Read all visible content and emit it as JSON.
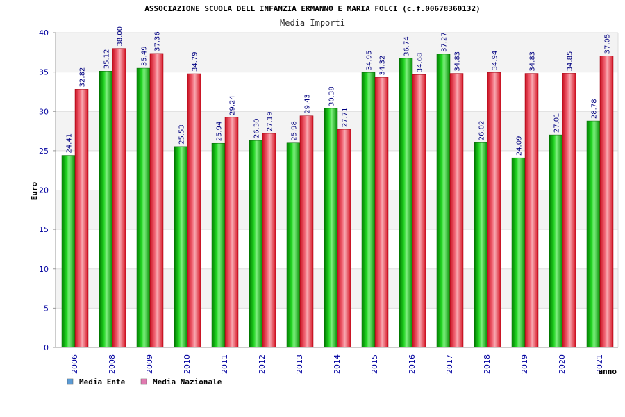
{
  "chart_data": {
    "type": "bar",
    "title": "ASSOCIAZIONE SCUOLA DELL INFANZIA ERMANNO E MARIA FOLCI (c.f.00678360132)",
    "subtitle": "Media Importi",
    "xlabel": "anno",
    "ylabel": "Euro",
    "ylim": [
      0,
      40
    ],
    "yticks": [
      0,
      5,
      10,
      15,
      20,
      25,
      30,
      35,
      40
    ],
    "categories": [
      "2006",
      "2008",
      "2009",
      "2010",
      "2011",
      "2012",
      "2013",
      "2014",
      "2015",
      "2016",
      "2017",
      "2018",
      "2019",
      "2020",
      "2021"
    ],
    "series": [
      {
        "name": "Media Ente",
        "legend_color": "#5b9bd5",
        "bar_color": "#00b000",
        "values": [
          24.41,
          35.12,
          35.49,
          25.53,
          25.94,
          26.3,
          25.98,
          30.38,
          34.95,
          36.74,
          37.27,
          26.02,
          24.09,
          27.01,
          28.78
        ],
        "labels": [
          "24.41",
          "35.12",
          "35.49",
          "25.53",
          "25.94",
          "26.30",
          "25.98",
          "30.38",
          "34.95",
          "36.74",
          "37.27",
          "26.02",
          "24.09",
          "27.01",
          "28.78"
        ]
      },
      {
        "name": "Media Nazionale",
        "legend_color": "#e07ab0",
        "bar_color": "#e8202c",
        "values": [
          32.82,
          38.0,
          37.36,
          34.79,
          29.24,
          27.19,
          29.43,
          27.71,
          34.32,
          34.68,
          34.83,
          34.94,
          34.83,
          34.85,
          37.05
        ],
        "labels": [
          "32.82",
          "38.00",
          "37.36",
          "34.79",
          "29.24",
          "27.19",
          "29.43",
          "27.71",
          "34.32",
          "34.68",
          "34.83",
          "34.94",
          "34.83",
          "34.85",
          "37.05"
        ]
      }
    ],
    "grid": true,
    "legend_position": "bottom-left"
  }
}
